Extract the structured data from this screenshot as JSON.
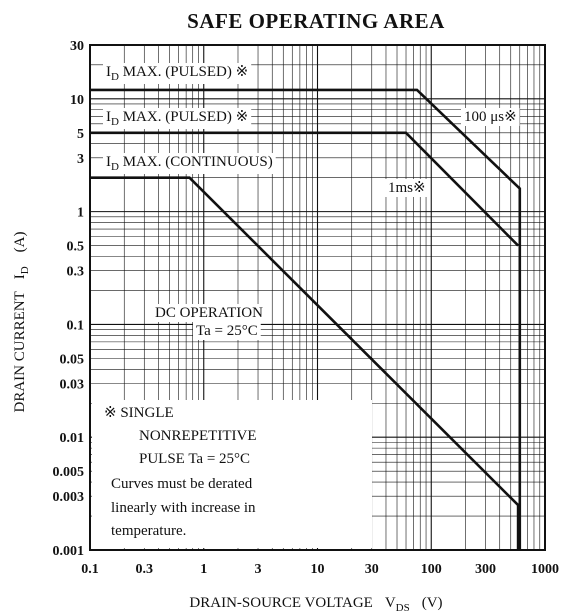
{
  "chart_data": {
    "type": "line",
    "title": "SAFE OPERATING AREA",
    "xlabel": "DRAIN-SOURCE VOLTAGE",
    "xlabel_symbol": "V",
    "xlabel_sub": "DS",
    "xlabel_unit": "(V)",
    "ylabel": "DRAIN CURRENT",
    "ylabel_symbol": "I",
    "ylabel_sub": "D",
    "ylabel_unit": "(A)",
    "x_scale": "log",
    "y_scale": "log",
    "xlim": [
      0.1,
      1000
    ],
    "ylim": [
      0.001,
      30
    ],
    "grid": true,
    "x_ticks": [
      {
        "value": 0.1,
        "label": "0.1"
      },
      {
        "value": 0.3,
        "label": "0.3"
      },
      {
        "value": 1,
        "label": "1"
      },
      {
        "value": 3,
        "label": "3"
      },
      {
        "value": 10,
        "label": "10"
      },
      {
        "value": 30,
        "label": "30"
      },
      {
        "value": 100,
        "label": "100"
      },
      {
        "value": 300,
        "label": "300"
      },
      {
        "value": 1000,
        "label": "1000"
      }
    ],
    "y_ticks": [
      {
        "value": 30,
        "label": "30"
      },
      {
        "value": 10,
        "label": "10"
      },
      {
        "value": 5,
        "label": "5"
      },
      {
        "value": 3,
        "label": "3"
      },
      {
        "value": 1,
        "label": "1"
      },
      {
        "value": 0.5,
        "label": "0.5"
      },
      {
        "value": 0.3,
        "label": "0.3"
      },
      {
        "value": 0.1,
        "label": "0.1"
      },
      {
        "value": 0.05,
        "label": "0.05"
      },
      {
        "value": 0.03,
        "label": "0.03"
      },
      {
        "value": 0.01,
        "label": "0.01"
      },
      {
        "value": 0.005,
        "label": "0.005"
      },
      {
        "value": 0.003,
        "label": "0.003"
      },
      {
        "value": 0.001,
        "label": "0.001"
      }
    ],
    "series": [
      {
        "points": [
          [
            0.1,
            12
          ],
          [
            75,
            12
          ],
          [
            600,
            1.6
          ],
          [
            600,
            0.001
          ]
        ]
      },
      {
        "points": [
          [
            0.1,
            5
          ],
          [
            60,
            5
          ],
          [
            580,
            0.5
          ]
        ]
      },
      {
        "points": [
          [
            0.1,
            2
          ],
          [
            0.75,
            2
          ],
          [
            580,
            0.0025
          ],
          [
            580,
            0.001
          ]
        ]
      }
    ],
    "annotations": [
      {
        "id": "id_max_pulsed_1",
        "prefix": "I",
        "sub": "D",
        "text": " MAX. (PULSED) ※"
      },
      {
        "id": "id_max_pulsed_2",
        "prefix": "I",
        "sub": "D",
        "text": " MAX. (PULSED) ※"
      },
      {
        "id": "id_max_cont",
        "prefix": "I",
        "sub": "D",
        "text": " MAX. (CONTINUOUS)"
      },
      {
        "id": "us100",
        "text": "100 μs※"
      },
      {
        "id": "ms1",
        "text": "1ms※"
      },
      {
        "id": "dc1",
        "text": "DC OPERATION"
      },
      {
        "id": "dc2",
        "text": "Ta = 25°C"
      }
    ],
    "note_lines": [
      "※  SINGLE",
      "NONREPETITIVE",
      "PULSE Ta = 25°C",
      "Curves must be derated",
      "linearly with increase in",
      "temperature."
    ],
    "colors": {
      "line": "#111111",
      "grid": "#111111",
      "background": "#ffffff"
    }
  }
}
